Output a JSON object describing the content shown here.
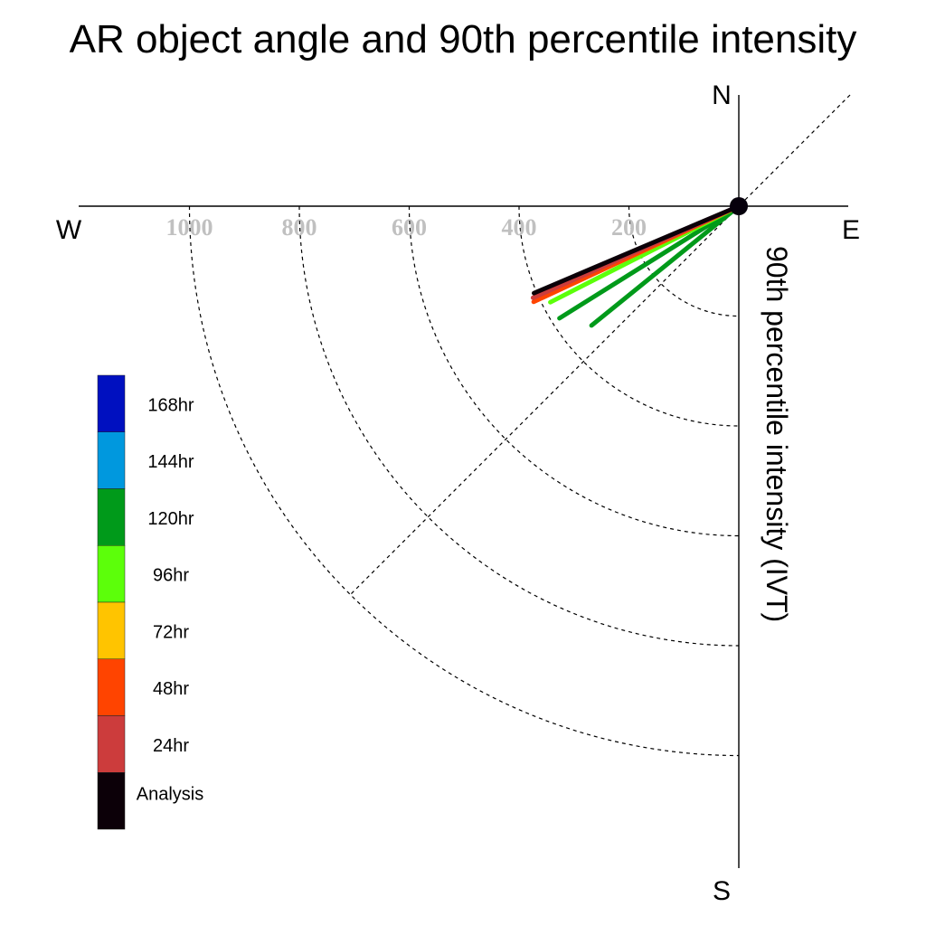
{
  "chart_data": {
    "type": "polar-line",
    "title": "AR object angle and 90th percentile intensity",
    "ylabel": "90th percentile intensity (IVT)",
    "compass": {
      "north": "N",
      "south": "S",
      "east": "E",
      "west": "W"
    },
    "radial_ticks": [
      1000,
      800,
      600,
      400,
      200
    ],
    "radial_max": 1200,
    "grid": true,
    "legend": {
      "placement": "left",
      "items": [
        {
          "label": "168hr",
          "color": "#0010C0"
        },
        {
          "label": "144hr",
          "color": "#0098DE"
        },
        {
          "label": "120hr",
          "color": "#009A1A"
        },
        {
          "label": "96hr",
          "color": "#5CFF0A"
        },
        {
          "label": "72hr",
          "color": "#FFC400"
        },
        {
          "label": "48hr",
          "color": "#FF4400"
        },
        {
          "label": "24hr",
          "color": "#CC3C3C"
        },
        {
          "label": "Analysis",
          "color": "#0C0008"
        }
      ]
    },
    "series": [
      {
        "name": "Analysis",
        "color": "#0C0008",
        "angle_deg": 247,
        "intensity": 405
      },
      {
        "name": "24hr",
        "color": "#CC3C3C",
        "angle_deg": 246,
        "intensity": 410
      },
      {
        "name": "48hr",
        "color": "#FF4400",
        "angle_deg": 245,
        "intensity": 412
      },
      {
        "name": "72hr",
        "color": "#FFC400",
        "angle_deg": 245,
        "intensity": 395
      },
      {
        "name": "96hr",
        "color": "#5CFF0A",
        "angle_deg": 243,
        "intensity": 385
      },
      {
        "name": "120hr",
        "color": "#009A1A",
        "angle_deg": 238,
        "intensity": 385
      },
      {
        "name": "120hr",
        "color": "#009A1A",
        "angle_deg": 231,
        "intensity": 345
      }
    ]
  }
}
